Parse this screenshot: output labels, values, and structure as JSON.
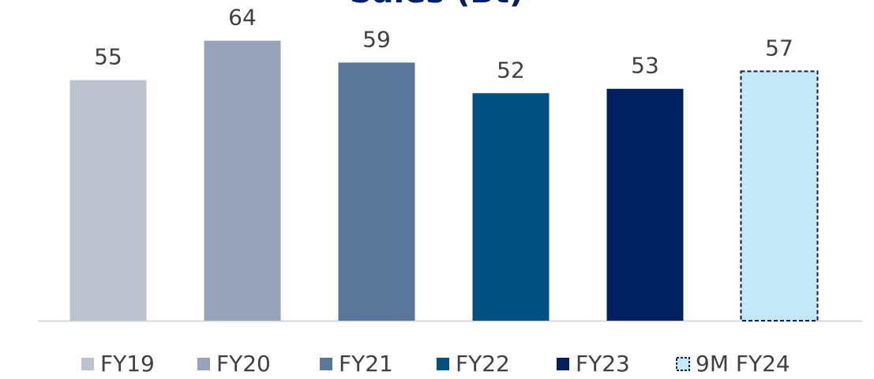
{
  "chart_data": {
    "type": "bar",
    "title": "Sales (Bt)",
    "categories": [
      "FY19",
      "FY20",
      "FY21",
      "FY22",
      "FY23",
      "9M FY24"
    ],
    "values": [
      55,
      64,
      59,
      52,
      53,
      57
    ],
    "colors": [
      "#bcc3cf",
      "#96a3bb",
      "#5a7799",
      "#005082",
      "#002060",
      "#c5e8f8"
    ],
    "styles": [
      "solid",
      "solid",
      "solid",
      "solid",
      "solid",
      "dashed"
    ],
    "ylim": [
      0,
      73.3
    ],
    "legend": "bottom"
  }
}
